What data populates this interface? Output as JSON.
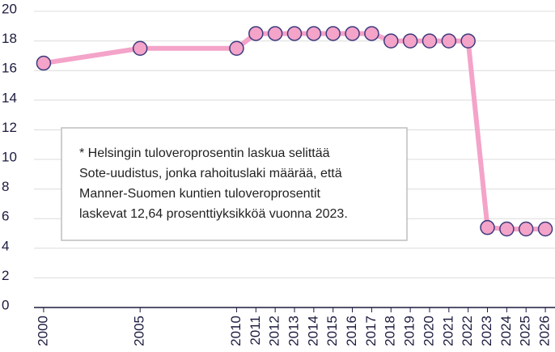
{
  "chart_data": {
    "type": "line",
    "x": [
      2000,
      2005,
      2010,
      2011,
      2012,
      2013,
      2014,
      2015,
      2016,
      2017,
      2018,
      2019,
      2020,
      2021,
      2022,
      2023,
      2024,
      2025,
      2026
    ],
    "series": [
      {
        "color": "#f4a3c9",
        "marker_color": "#f4a3c9",
        "marker_edge": "#3d3b7c",
        "values": [
          16.5,
          17.5,
          17.5,
          18.5,
          18.5,
          18.5,
          18.5,
          18.5,
          18.5,
          18.5,
          18,
          18,
          18,
          18,
          18,
          5.4,
          5.3,
          5.3,
          5.3
        ]
      }
    ],
    "xlim": [
      1999.5,
      2026.5
    ],
    "xticks": [
      2000,
      2005,
      2010,
      2011,
      2012,
      2013,
      2014,
      2015,
      2016,
      2017,
      2018,
      2019,
      2020,
      2021,
      2022,
      2023,
      2024,
      2025,
      2026
    ],
    "ylim": [
      0,
      20
    ],
    "yticks": [
      0,
      2,
      4,
      6,
      8,
      10,
      12,
      14,
      16,
      18,
      20
    ],
    "grid": true,
    "annotation": [
      "* Helsingin tuloveroprosentin laskua selittää",
      "Sote-uudistus, jonka rahoituslaki määrää, että",
      "Manner-Suomen kuntien tuloveroprosentit",
      "laskevat 12,64 prosenttiyksikköä vuonna 2023."
    ]
  }
}
